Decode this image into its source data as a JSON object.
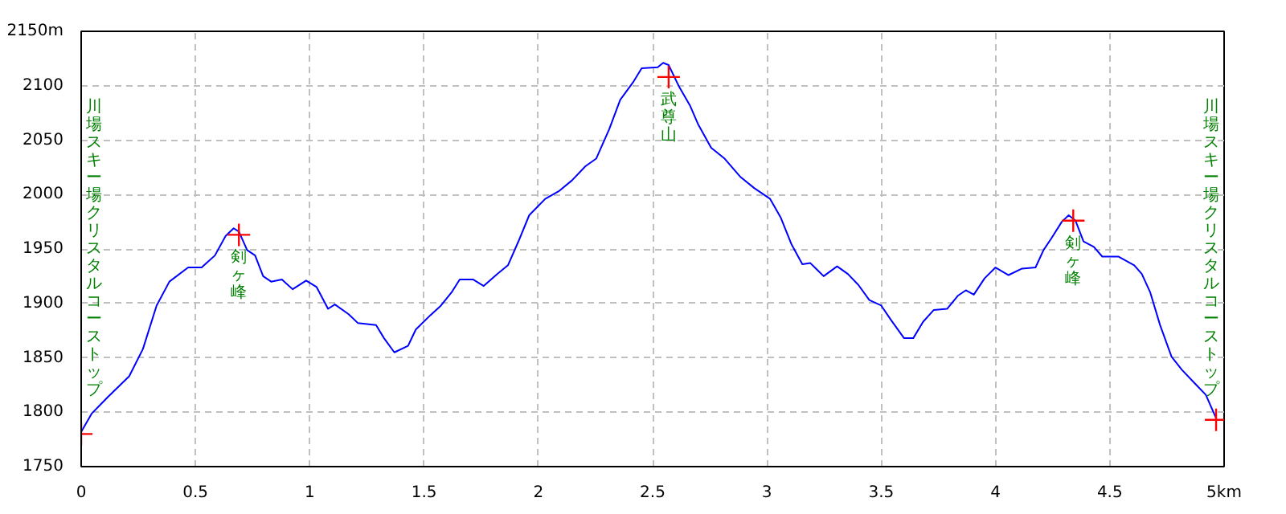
{
  "chart_data": {
    "type": "line",
    "xlim": [
      0,
      5
    ],
    "ylim": [
      1750,
      2150
    ],
    "xticks": [
      0,
      0.5,
      1,
      1.5,
      2,
      2.5,
      3,
      3.5,
      4,
      4.5,
      {
        "value": 5,
        "label": "5km"
      }
    ],
    "yticks": [
      1750,
      1800,
      1850,
      1900,
      1950,
      2000,
      2050,
      2100,
      {
        "value": 2150,
        "label": "2150m"
      }
    ],
    "grid": true,
    "series": [
      {
        "type": "line",
        "color": "#0000ff",
        "marker": "none",
        "x": [
          0,
          0.047,
          0.117,
          0.21,
          0.27,
          0.33,
          0.386,
          0.468,
          0.527,
          0.585,
          0.632,
          0.667,
          0.69,
          0.726,
          0.761,
          0.796,
          0.831,
          0.878,
          0.925,
          0.984,
          1.03,
          1.08,
          1.11,
          1.17,
          1.21,
          1.29,
          1.325,
          1.37,
          1.43,
          1.464,
          1.527,
          1.574,
          1.62,
          1.656,
          1.714,
          1.761,
          1.82,
          1.867,
          1.913,
          1.96,
          2.03,
          2.089,
          2.147,
          2.206,
          2.253,
          2.31,
          2.358,
          2.417,
          2.452,
          2.522,
          2.546,
          2.57,
          2.616,
          2.663,
          2.698,
          2.756,
          2.815,
          2.885,
          2.944,
          3.014,
          3.06,
          3.108,
          3.155,
          3.19,
          3.248,
          3.307,
          3.354,
          3.4,
          3.448,
          3.5,
          3.542,
          3.6,
          3.64,
          3.683,
          3.73,
          3.788,
          3.835,
          3.87,
          3.905,
          3.952,
          4.0,
          4.057,
          4.116,
          4.175,
          4.21,
          4.245,
          4.29,
          4.32,
          4.35,
          4.385,
          4.43,
          4.467,
          4.537,
          4.607,
          4.64,
          4.677,
          4.72,
          4.77,
          4.815,
          4.874,
          4.92,
          4.966
        ],
        "values": [
          1782,
          1799,
          1814,
          1833,
          1858,
          1898,
          1920,
          1933,
          1933,
          1944,
          1962,
          1969,
          1966,
          1949,
          1944,
          1925,
          1920,
          1922,
          1913,
          1921,
          1915,
          1895,
          1899,
          1890,
          1882,
          1880,
          1868,
          1855,
          1861,
          1876,
          1889,
          1898,
          1910,
          1922,
          1922,
          1916,
          1927,
          1935,
          1957,
          1981,
          1996,
          2003,
          2013,
          2026,
          2033,
          2060,
          2087,
          2104,
          2116,
          2117,
          2121,
          2119,
          2099,
          2082,
          2065,
          2043,
          2033,
          2016,
          2006,
          1996,
          1979,
          1954,
          1936,
          1937,
          1925,
          1934,
          1927,
          1917,
          1903,
          1898,
          1885,
          1868,
          1868,
          1883,
          1894,
          1895,
          1907,
          1912,
          1908,
          1923,
          1933,
          1926,
          1932,
          1933,
          1949,
          1960,
          1975,
          1981,
          1976,
          1957,
          1952,
          1943,
          1943,
          1935,
          1927,
          1910,
          1880,
          1851,
          1839,
          1826,
          1816,
          1794
        ]
      },
      {
        "type": "scatter",
        "color": "#ff0000",
        "marker": "cross",
        "x": [
          0,
          0.69,
          2.57,
          4.34,
          4.965
        ],
        "values": [
          1780,
          1963,
          2108,
          1976,
          1793
        ]
      }
    ],
    "annotations": [
      "川場スキー場クリスタルコーストップ",
      {
        "text": "剣ヶ峰",
        "x": 0.69,
        "y": 1963
      },
      {
        "text": "武尊山",
        "x": 2.57,
        "y": 2108
      },
      {
        "text": "剣ヶ峰",
        "x": 4.34,
        "y": 1976
      },
      "川場スキー場クリスタルコーストップ"
    ]
  }
}
